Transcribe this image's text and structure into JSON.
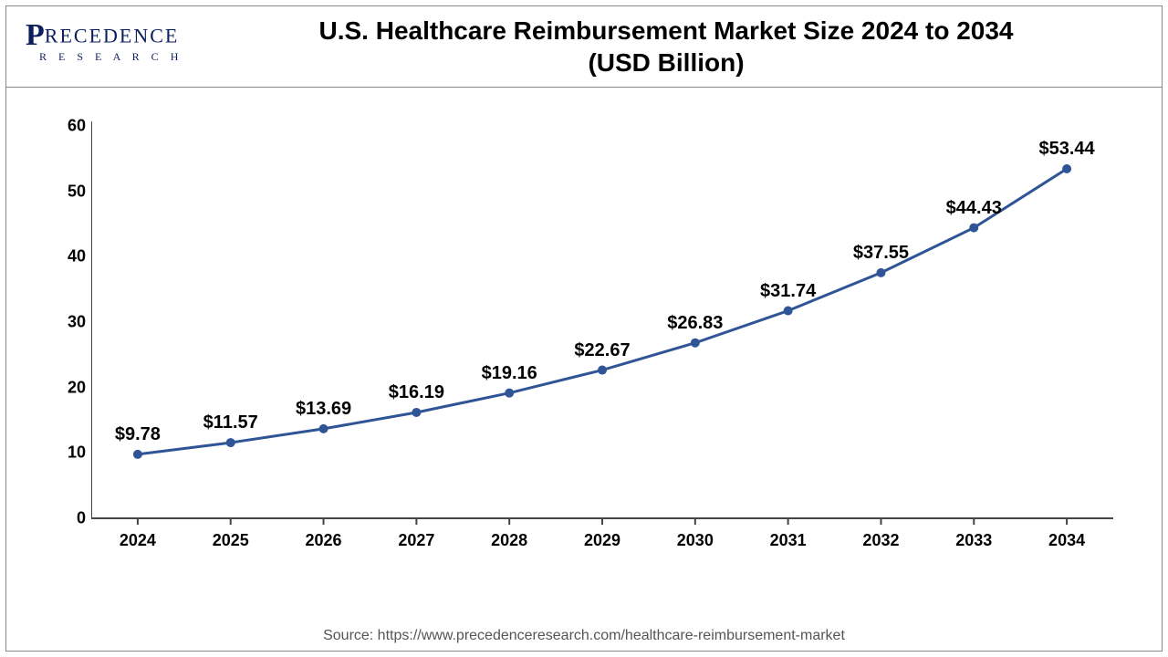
{
  "logo": {
    "brand_main": "PRECEDENCE",
    "brand_sub": "R E S E A R C H",
    "brand_color": "#0a1f5c"
  },
  "chart": {
    "type": "line",
    "title": "U.S. Healthcare Reimbursement Market Size 2024 to 2034\n(USD Billion)",
    "title_fontsize": 28,
    "title_fontweight": "bold",
    "background_color": "#ffffff",
    "border_color": "#888888",
    "line_color": "#2f5597",
    "line_width": 3,
    "marker_color": "#2f5597",
    "marker_radius": 5,
    "axis_color": "#444444",
    "axis_width": 2,
    "tick_fontsize": 18,
    "tick_fontweight": "bold",
    "label_fontsize": 20,
    "label_fontweight": "bold",
    "label_prefix": "$",
    "x_categories": [
      "2024",
      "2025",
      "2026",
      "2027",
      "2028",
      "2029",
      "2030",
      "2031",
      "2032",
      "2033",
      "2034"
    ],
    "y_values": [
      9.78,
      11.57,
      13.69,
      16.19,
      19.16,
      22.67,
      26.83,
      31.74,
      37.55,
      44.43,
      53.44
    ],
    "ylim": [
      0,
      60
    ],
    "ytick_step": 10,
    "source_text": "Source: https://www.precedenceresearch.com/healthcare-reimbursement-market",
    "source_fontsize": 16,
    "source_color": "#555555"
  }
}
